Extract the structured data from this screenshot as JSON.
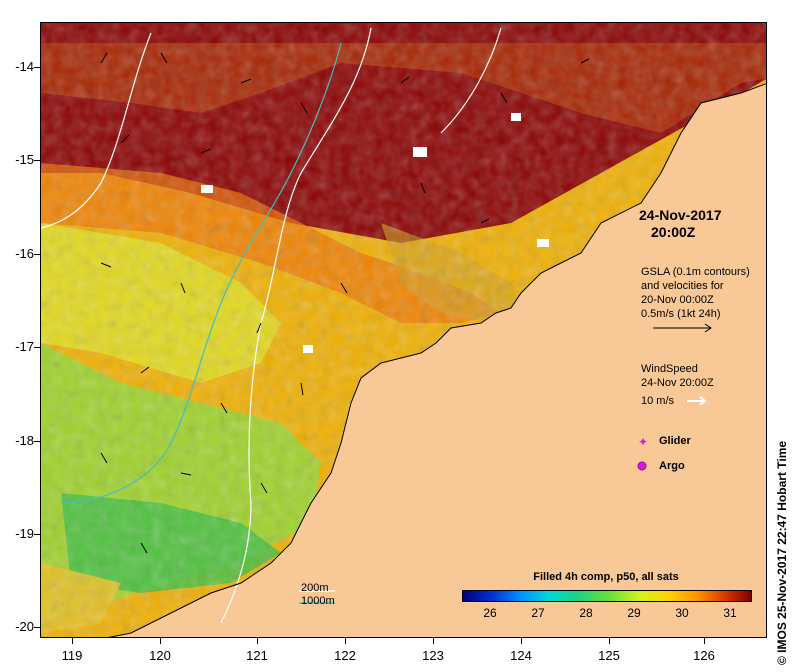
{
  "map": {
    "lat_ticks": [
      "-14",
      "-15",
      "-16",
      "-17",
      "-18",
      "-19",
      "-20"
    ],
    "lon_ticks": [
      "119",
      "120",
      "121",
      "122",
      "123",
      "124",
      "125",
      "126"
    ],
    "date": "24-Nov-2017",
    "time": "20:00Z",
    "gsla_lines": [
      "GSLA (0.1m contours)",
      "and velocities for",
      "20-Nov 00:00Z",
      "0.5m/s (1kt 24h)"
    ],
    "wind_lines": [
      "WindSpeed",
      "24-Nov 20:00Z",
      "10 m/s"
    ],
    "glider_label": "Glider",
    "argo_label": "Argo",
    "depth_200": "200m",
    "depth_1000": "1000m",
    "colorbar_title": "Filled 4h comp, p50, all sats",
    "colorbar_ticks": [
      "26",
      "27",
      "28",
      "29",
      "30",
      "31"
    ],
    "credit": "© IMOS 25-Nov-2017 22:47 Hobart Time",
    "colors": {
      "land": "#f8c896",
      "warm": "#8b0000",
      "mid": "#f0b000",
      "cool": "#40c040",
      "contour_200": "#ffffff",
      "contour_1000": "#40c0c0",
      "glider_marker": "#d020d0",
      "argo_marker": "#d020d0"
    }
  }
}
